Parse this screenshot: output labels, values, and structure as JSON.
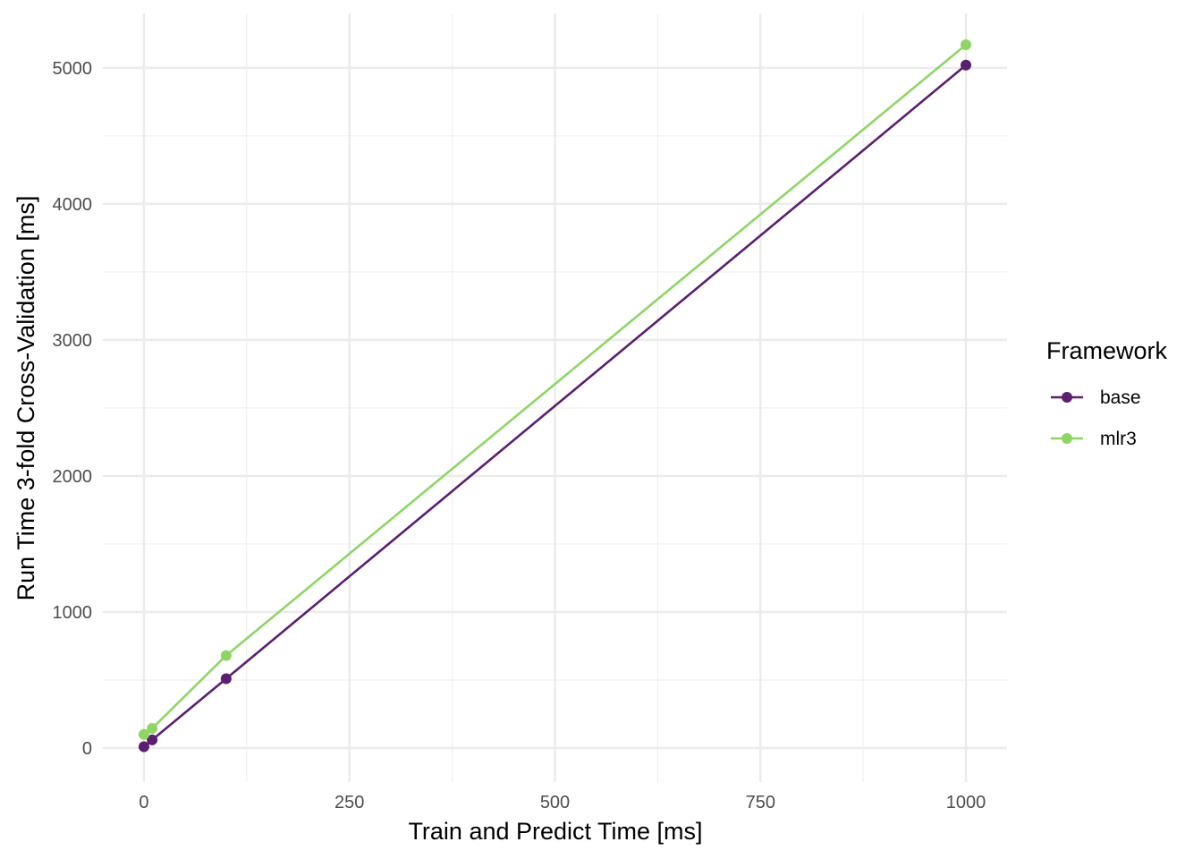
{
  "chart_data": {
    "type": "line",
    "xlabel": "Train and Predict Time [ms]",
    "ylabel": "Run Time 3-fold Cross-Validation [ms]",
    "xlim": [
      -50,
      1050
    ],
    "ylim": [
      -250,
      5400
    ],
    "x_ticks": [
      0,
      250,
      500,
      750,
      1000
    ],
    "y_ticks": [
      0,
      1000,
      2000,
      3000,
      4000,
      5000
    ],
    "x_tick_labels": [
      "0",
      "250",
      "500",
      "750",
      "1000"
    ],
    "y_tick_labels": [
      "0",
      "1000",
      "2000",
      "3000",
      "4000",
      "5000"
    ],
    "grid": true,
    "legend": {
      "title": "Framework",
      "position": "right"
    },
    "series": [
      {
        "name": "base",
        "color": "#5a1f6e",
        "x": [
          0,
          10,
          100,
          1000
        ],
        "y": [
          10,
          60,
          510,
          5020
        ]
      },
      {
        "name": "mlr3",
        "color": "#8fd566",
        "x": [
          0,
          10,
          100,
          1000
        ],
        "y": [
          100,
          145,
          680,
          5170
        ]
      }
    ]
  }
}
